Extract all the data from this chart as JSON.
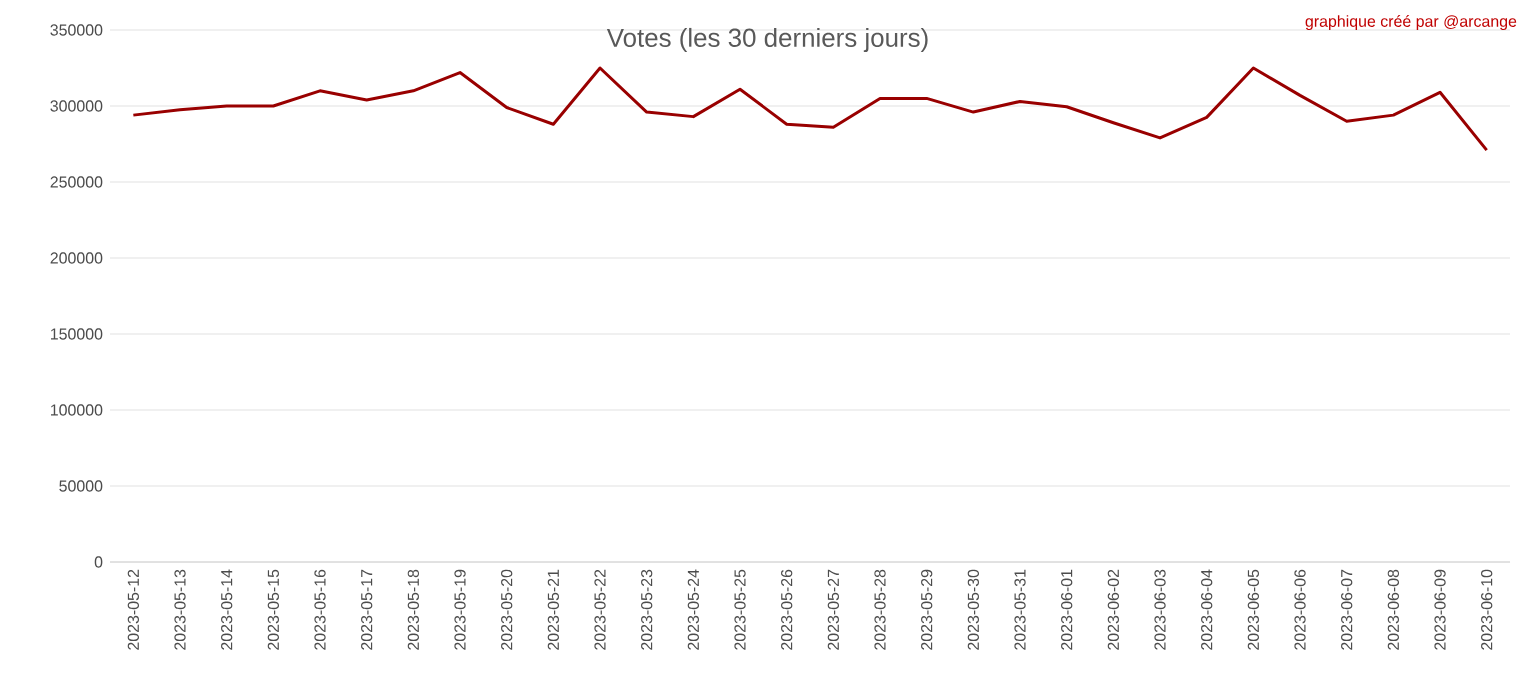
{
  "chart_data": {
    "type": "line",
    "title": "Votes (les 30 derniers jours)",
    "annotations": [
      "graphique créé par @arcange"
    ],
    "categories": [
      "2023-05-12",
      "2023-05-13",
      "2023-05-14",
      "2023-05-15",
      "2023-05-16",
      "2023-05-17",
      "2023-05-18",
      "2023-05-19",
      "2023-05-20",
      "2023-05-21",
      "2023-05-22",
      "2023-05-23",
      "2023-05-24",
      "2023-05-25",
      "2023-05-26",
      "2023-05-27",
      "2023-05-28",
      "2023-05-29",
      "2023-05-30",
      "2023-05-31",
      "2023-06-01",
      "2023-06-02",
      "2023-06-03",
      "2023-06-04",
      "2023-06-05",
      "2023-06-06",
      "2023-06-07",
      "2023-06-08",
      "2023-06-09",
      "2023-06-10"
    ],
    "series": [
      {
        "color": "#990000",
        "values": [
          294000,
          297500,
          300000,
          300000,
          310000,
          304000,
          310000,
          322000,
          299000,
          288000,
          325000,
          296000,
          293000,
          311000,
          288000,
          286000,
          305000,
          305000,
          296000,
          303000,
          299500,
          289000,
          279000,
          292500,
          325000,
          307000,
          290000,
          294000,
          309000,
          271000
        ]
      }
    ],
    "ylim": [
      0,
      350000
    ],
    "yticks": [
      0,
      50000,
      100000,
      150000,
      200000,
      250000,
      300000,
      350000
    ],
    "grid": "y",
    "marker": "none",
    "line_style": "solid"
  }
}
